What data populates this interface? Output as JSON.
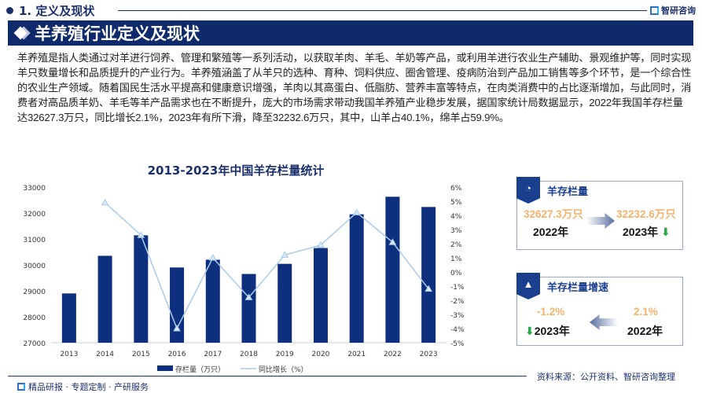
{
  "header": {
    "section": "1. 定义及现状",
    "logo": "智研咨询"
  },
  "banner": "羊养殖行业定义及现状",
  "paragraph": "羊养殖是指人类通过对羊进行饲养、管理和繁殖等一系列活动，以获取羊肉、羊毛、羊奶等产品，或利用羊进行农业生产辅助、景观维护等，同时实现羊只数量增长和品质提升的产业行为。羊养殖涵盖了从羊只的选种、育种、饲料供应、圈舍管理、疫病防治到产品加工销售等多个环节，是一个综合性的农业生产领域。随着国民生活水平提高和健康意识增强，羊肉以其高蛋白、低脂肪、营养丰富等特点，在肉类消费中的占比逐渐增加，与此同时，消费者对高品质羊奶、羊毛等羊产品需求也在不断提升，庞大的市场需求带动我国羊养殖产业稳步发展，据国家统计局数据显示，2022年我国羊存栏量达32627.3万只，同比增长2.1%，2023年有所下滑，降至32232.6万只，其中，山羊占40.1%，绵羊占59.9%。",
  "chart_data": {
    "type": "bar",
    "title": "2013-2023年中国羊存栏量统计",
    "categories": [
      "2013",
      "2014",
      "2015",
      "2016",
      "2017",
      "2018",
      "2019",
      "2020",
      "2021",
      "2022",
      "2023"
    ],
    "series": [
      {
        "name": "存栏量（万只）",
        "type": "bar",
        "axis": "left",
        "values": [
          28900,
          30350,
          31140,
          29900,
          30200,
          29650,
          30040,
          30650,
          31950,
          32627.3,
          32232.6
        ]
      },
      {
        "name": "同比增长（%）",
        "type": "line",
        "axis": "right",
        "values": [
          null,
          4.9,
          2.6,
          -4.0,
          1.0,
          -1.8,
          1.2,
          1.9,
          4.2,
          2.1,
          -1.2
        ]
      }
    ],
    "ylim_left": [
      27000,
      33000
    ],
    "yticks_left": [
      "27000",
      "28000",
      "29000",
      "30000",
      "31000",
      "32000",
      "33000"
    ],
    "ylim_right": [
      -5,
      6
    ],
    "yticks_right": [
      "-5%",
      "-4%",
      "-3%",
      "-2%",
      "-1%",
      "0%",
      "1%",
      "2%",
      "3%",
      "4%",
      "5%",
      "6%"
    ],
    "legend": "bottom",
    "colors": {
      "bar": "#0e2f7e",
      "line": "#a9cbe8"
    }
  },
  "cards": [
    {
      "title": "羊存栏量",
      "from_value": "32627.3万只",
      "from_year": "2022年",
      "to_value": "32232.6万只",
      "to_year": "2023年"
    },
    {
      "title": "羊存栏量增速",
      "from_value": "2.1%",
      "from_year": "2022年",
      "to_value": "-1.2%",
      "to_year": "2023年"
    }
  ],
  "source": "资料来源：公开资料、智研咨询整理",
  "footer": "精品研报 · 专题定制 · 产研服务"
}
